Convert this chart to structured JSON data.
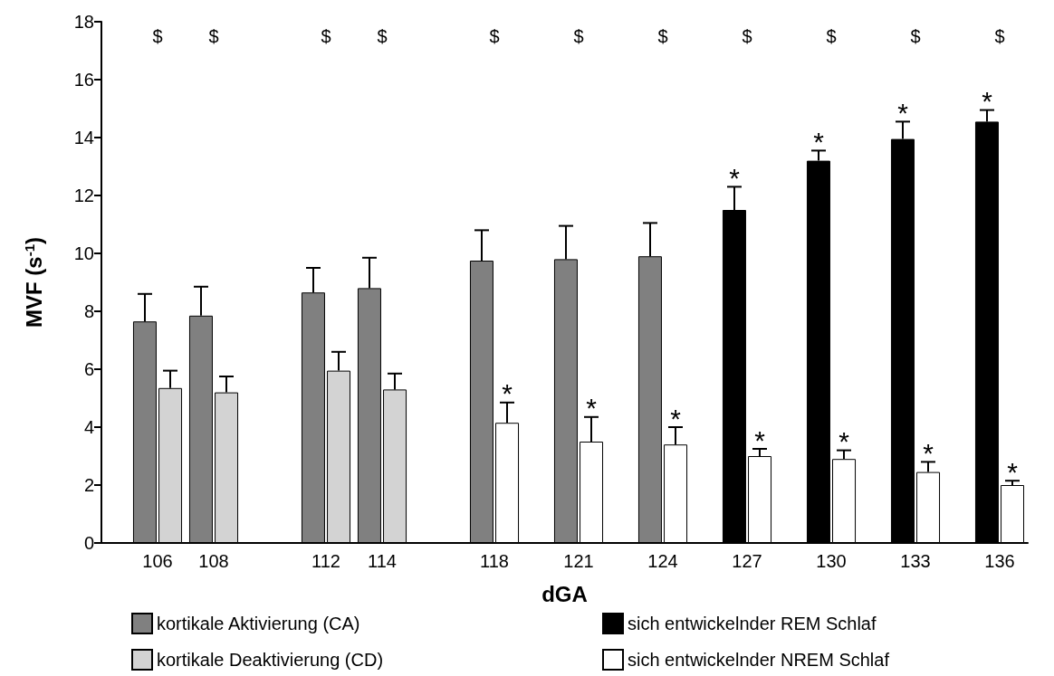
{
  "chart_data": {
    "type": "bar",
    "xlabel": "dGA",
    "ylabel": "MVF (s$^{-1}$)",
    "xlim": [
      104,
      137
    ],
    "xticks": [
      106,
      108,
      112,
      114,
      118,
      121,
      124,
      127,
      130,
      133,
      136
    ],
    "ylim": [
      0,
      18
    ],
    "yticks": [
      0,
      2,
      4,
      6,
      8,
      10,
      12,
      14,
      16,
      18
    ],
    "legend": "bottom",
    "grid": false,
    "series": [
      {
        "name": "kortikale Aktivierung (CA)",
        "color": "#808080",
        "x": [
          106,
          108,
          112,
          114,
          118,
          121,
          124
        ],
        "values": [
          7.65,
          7.85,
          8.65,
          8.8,
          9.75,
          9.8,
          9.9
        ],
        "errors": [
          [
            7.65,
            8.6
          ],
          [
            7.85,
            8.85
          ],
          [
            8.65,
            9.5
          ],
          [
            8.8,
            9.85
          ],
          [
            9.75,
            10.8
          ],
          [
            9.8,
            10.95
          ],
          [
            9.9,
            11.05
          ]
        ]
      },
      {
        "name": "kortikale Deaktivierung (CD)",
        "color": "#d3d3d3",
        "x": [
          106,
          108,
          112,
          114
        ],
        "values": [
          5.35,
          5.2,
          5.95,
          5.3
        ],
        "errors": [
          [
            5.35,
            5.95
          ],
          [
            5.2,
            5.75
          ],
          [
            5.95,
            6.6
          ],
          [
            5.3,
            5.85
          ]
        ]
      },
      {
        "name": "sich entwickelnder REM Schlaf",
        "color": "#000000",
        "x": [
          127,
          130,
          133,
          136
        ],
        "values": [
          11.5,
          13.2,
          13.95,
          14.55
        ],
        "errors": [
          [
            11.5,
            12.3
          ],
          [
            13.2,
            13.55
          ],
          [
            13.95,
            14.55
          ],
          [
            14.55,
            14.95
          ]
        ]
      },
      {
        "name": "sich entwickelnder NREM Schlaf",
        "color": "#ffffff",
        "x": [
          118,
          121,
          124,
          127,
          130,
          133,
          136
        ],
        "values": [
          4.15,
          3.5,
          3.4,
          3.0,
          2.9,
          2.45,
          2.0
        ],
        "errors": [
          [
            4.15,
            4.85
          ],
          [
            3.5,
            4.35
          ],
          [
            3.4,
            4.0
          ],
          [
            3.0,
            3.25
          ],
          [
            2.9,
            3.2
          ],
          [
            2.45,
            2.8
          ],
          [
            2.0,
            2.15
          ]
        ]
      }
    ],
    "annotations": [
      "$",
      "$",
      "$",
      "$",
      "$",
      "$",
      "$",
      "$",
      "$",
      "$",
      "$",
      {
        "text": "*",
        "x": 118,
        "y": 4.15
      },
      {
        "text": "*",
        "x": 121,
        "y": 3.5
      },
      {
        "text": "*",
        "x": 124,
        "y": 3.4
      },
      {
        "text": "*",
        "x": 127,
        "y": 3.0
      },
      {
        "text": "*",
        "x": 130,
        "y": 2.9
      },
      {
        "text": "*",
        "x": 133,
        "y": 2.45
      },
      {
        "text": "*",
        "x": 136,
        "y": 2.0
      },
      {
        "text": "*",
        "x": 127,
        "y": 11.5
      },
      {
        "text": "*",
        "x": 130,
        "y": 13.2
      },
      {
        "text": "*",
        "x": 133,
        "y": 13.95
      },
      {
        "text": "*",
        "x": 136,
        "y": 14.55
      }
    ]
  }
}
